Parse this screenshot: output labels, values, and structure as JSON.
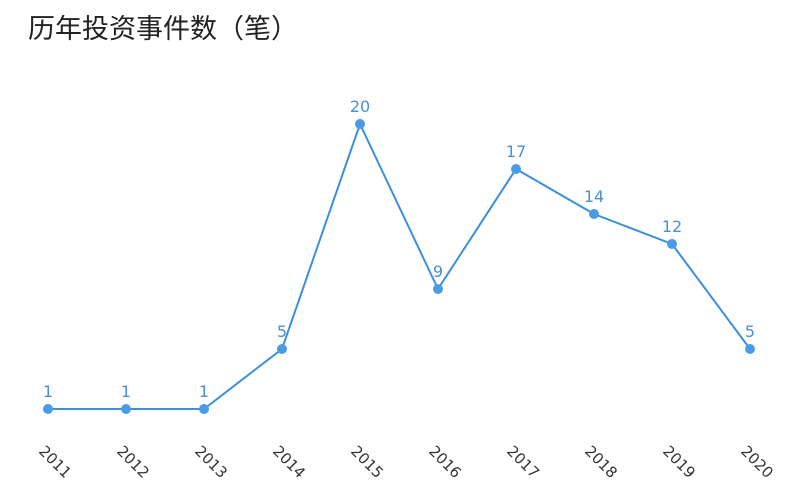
{
  "chart_data": {
    "type": "line",
    "title": "历年投资事件数（笔）",
    "categories": [
      "2011",
      "2012",
      "2013",
      "2014",
      "2015",
      "2016",
      "2017",
      "2018",
      "2019",
      "2020"
    ],
    "values": [
      1,
      1,
      1,
      5,
      20,
      9,
      17,
      14,
      12,
      5
    ],
    "color": "#3d8fdc"
  }
}
